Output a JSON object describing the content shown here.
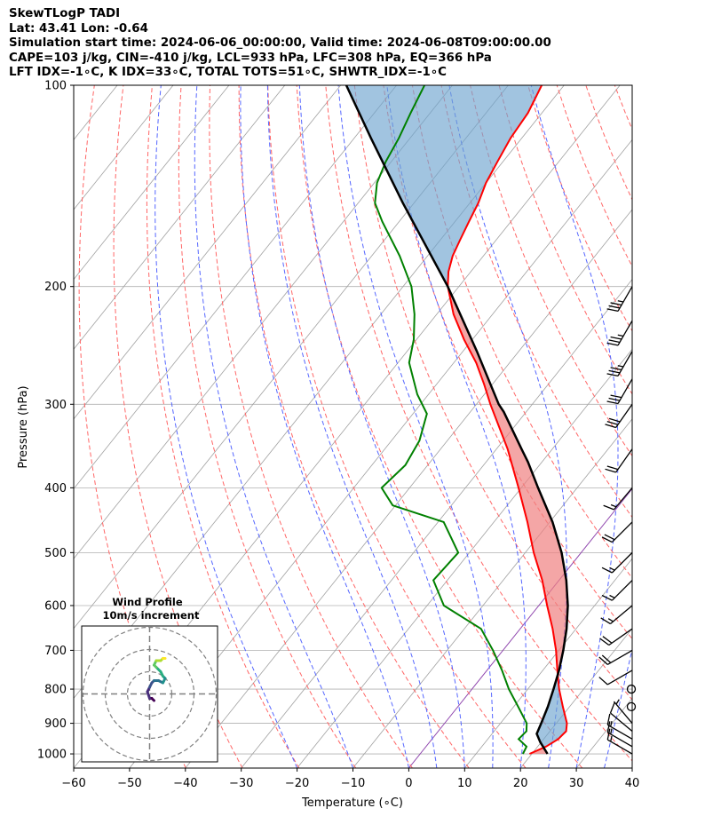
{
  "header": {
    "line1": "SkewTLogP TADI",
    "line2": "Lat: 43.41   Lon: -0.64",
    "line3": "Simulation start time: 2024-06-06_00:00:00, Valid time: 2024-06-08T09:00:00.00",
    "line4": "CAPE=103 j/kg, CIN=-410 j/kg, LCL=933 hPa, LFC=308 hPa, EQ=366 hPa",
    "line5": "LFT IDX=-1∘C, K IDX=33∘C, TOTAL TOTS=51∘C, SHWTR_IDX=-1∘C"
  },
  "chart_data": {
    "type": "skewt",
    "xlabel": "Temperature (∘C)",
    "ylabel": "Pressure (hPa)",
    "xlim": [
      -60,
      40
    ],
    "ylim": [
      1050,
      100
    ],
    "x_ticks": [
      "−60",
      "−50",
      "−40",
      "−30",
      "−20",
      "−10",
      "0",
      "10",
      "20",
      "30",
      "40"
    ],
    "y_ticks": [
      "100",
      "200",
      "300",
      "400",
      "500",
      "600",
      "700",
      "800",
      "900",
      "1000"
    ],
    "y_tick_values": [
      100,
      200,
      300,
      400,
      500,
      600,
      700,
      800,
      900,
      1000
    ],
    "x_tick_values": [
      -60,
      -50,
      -40,
      -30,
      -20,
      -10,
      0,
      10,
      20,
      30,
      40
    ],
    "grid": true,
    "colors": {
      "temperature": "#ff0000",
      "dewpoint": "#008000",
      "parcel": "#000000",
      "cape_fill": "#6fa5cf",
      "cin_fill": "#f08080",
      "dry_adiabat": "#ff6666",
      "moist_adiabat": "#5566ff",
      "isotherm": "#a0a0a0",
      "isotherm_zero": "#8e44ad"
    },
    "temperature_profile": {
      "pressure": [
        1000,
        975,
        950,
        925,
        900,
        850,
        800,
        750,
        700,
        650,
        600,
        550,
        500,
        450,
        400,
        350,
        300,
        280,
        260,
        240,
        220,
        200,
        190,
        180,
        170,
        160,
        150,
        140,
        130,
        120,
        110,
        100
      ],
      "temp": [
        19.6,
        21.5,
        22.6,
        22.9,
        21.9,
        18.8,
        15.6,
        12.6,
        9.5,
        5.8,
        1.5,
        -3.0,
        -8.5,
        -14.0,
        -20.5,
        -28.0,
        -37.5,
        -41.5,
        -46.0,
        -51.5,
        -57.0,
        -62.0,
        -64.0,
        -65.5,
        -66.5,
        -67.5,
        -68.5,
        -70.0,
        -71.0,
        -72.0,
        -72.5,
        -74.0
      ]
    },
    "dewpoint_profile": {
      "pressure": [
        1000,
        975,
        950,
        925,
        900,
        850,
        800,
        750,
        700,
        650,
        600,
        550,
        500,
        450,
        425,
        400,
        370,
        340,
        310,
        290,
        260,
        240,
        220,
        200,
        180,
        160,
        150,
        140,
        130,
        120,
        110,
        100
      ],
      "dewpoint": [
        18.4,
        18.0,
        15.5,
        15.8,
        14.7,
        10.8,
        6.6,
        2.7,
        -1.8,
        -7.0,
        -17.0,
        -22.5,
        -22.0,
        -29.0,
        -40.5,
        -45.0,
        -44.0,
        -45.0,
        -47.5,
        -52.0,
        -58.0,
        -60.5,
        -64.0,
        -68.5,
        -75.0,
        -83.0,
        -87.0,
        -89.5,
        -91.0,
        -92.0,
        -93.5,
        -95.0
      ]
    },
    "parcel_profile": {
      "pressure": [
        1000,
        960,
        933,
        900,
        850,
        800,
        750,
        700,
        650,
        600,
        550,
        500,
        450,
        400,
        366,
        350,
        308,
        300,
        250,
        200,
        150,
        120,
        100
      ],
      "temp": [
        22.8,
        19.8,
        18.0,
        17.3,
        16.1,
        14.6,
        12.9,
        10.8,
        8.3,
        5.2,
        1.3,
        -3.5,
        -9.5,
        -17.0,
        -22.5,
        -25.5,
        -34.0,
        -36.0,
        -47.5,
        -62.0,
        -82.0,
        -97.0,
        -109.0
      ]
    },
    "wind_barbs": [
      {
        "pressure": 1000,
        "speed_kt": 15,
        "direction_deg": 300
      },
      {
        "pressure": 975,
        "speed_kt": 15,
        "direction_deg": 300
      },
      {
        "pressure": 950,
        "speed_kt": 15,
        "direction_deg": 300
      },
      {
        "pressure": 925,
        "speed_kt": 10,
        "direction_deg": 310
      },
      {
        "pressure": 900,
        "speed_kt": 5,
        "direction_deg": 320
      },
      {
        "pressure": 850,
        "speed_kt": 0,
        "direction_deg": 0
      },
      {
        "pressure": 800,
        "speed_kt": 0,
        "direction_deg": 0
      },
      {
        "pressure": 750,
        "speed_kt": 10,
        "direction_deg": 240
      },
      {
        "pressure": 700,
        "speed_kt": 20,
        "direction_deg": 240
      },
      {
        "pressure": 650,
        "speed_kt": 20,
        "direction_deg": 235
      },
      {
        "pressure": 600,
        "speed_kt": 15,
        "direction_deg": 230
      },
      {
        "pressure": 550,
        "speed_kt": 15,
        "direction_deg": 225
      },
      {
        "pressure": 500,
        "speed_kt": 15,
        "direction_deg": 225
      },
      {
        "pressure": 450,
        "speed_kt": 20,
        "direction_deg": 225
      },
      {
        "pressure": 400,
        "speed_kt": 15,
        "direction_deg": 220
      },
      {
        "pressure": 350,
        "speed_kt": 20,
        "direction_deg": 215
      },
      {
        "pressure": 300,
        "speed_kt": 30,
        "direction_deg": 215
      },
      {
        "pressure": 275,
        "speed_kt": 30,
        "direction_deg": 210
      },
      {
        "pressure": 250,
        "speed_kt": 35,
        "direction_deg": 210
      },
      {
        "pressure": 225,
        "speed_kt": 35,
        "direction_deg": 210
      },
      {
        "pressure": 200,
        "speed_kt": 35,
        "direction_deg": 210
      }
    ],
    "hodograph": {
      "title_line1": "Wind Profile",
      "title_line2": "10m/s increment",
      "rings_ms": [
        10,
        20,
        30
      ],
      "u": [
        2,
        1,
        0,
        -1,
        0,
        1,
        2,
        4,
        6,
        7,
        6,
        5,
        3,
        2,
        3,
        5,
        6,
        7
      ],
      "v": [
        -3,
        -2,
        -2,
        1,
        3,
        5,
        6,
        6,
        5,
        7,
        8,
        10,
        12,
        13,
        15,
        15,
        16,
        16
      ]
    }
  }
}
